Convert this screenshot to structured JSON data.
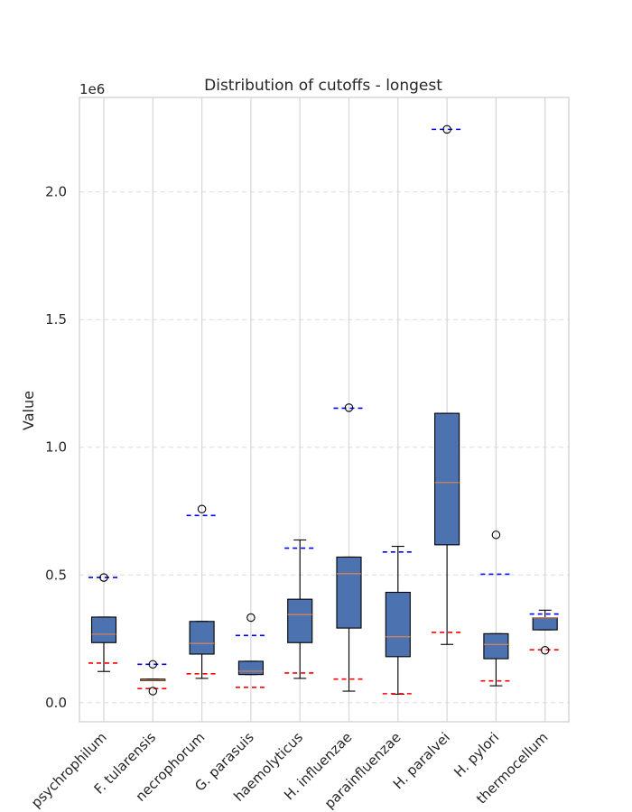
{
  "chart_data": {
    "type": "box",
    "title": "Distribution of cutoffs - longest",
    "xlabel": "",
    "ylabel": "Value",
    "y_offset_label": "1e6",
    "y_scale_factor": 1000000,
    "ylim": [
      -75000,
      2370000
    ],
    "yticks": [
      0,
      500000,
      1000000,
      1500000,
      2000000
    ],
    "ytick_labels": [
      "0.0",
      "0.5",
      "1.0",
      "1.5",
      "2.0"
    ],
    "grid": true,
    "colors": {
      "box": "#4c72b0",
      "median": "#dd8452",
      "min_line": "#ff0000",
      "max_line": "#0000ff"
    },
    "categories": [
      "psychrophilum",
      "F. tularensis",
      "necrophorum",
      "G. parasuis",
      "haemolyticus",
      "H. influenzae",
      "parainfluenzae",
      "H. paralvei",
      "H. pylori",
      "thermocellum"
    ],
    "boxes": [
      {
        "q1": 235000,
        "median": 268000,
        "q3": 335000,
        "whisker_low": 122000,
        "whisker_high": 335000,
        "fliers": [
          490000
        ],
        "min": 155000,
        "max": 490000
      },
      {
        "q1": 86000,
        "median": 88000,
        "q3": 92000,
        "whisker_low": 86000,
        "whisker_high": 92000,
        "fliers": [
          150000,
          45000
        ],
        "min": 55000,
        "max": 150000
      },
      {
        "q1": 190000,
        "median": 232000,
        "q3": 318000,
        "whisker_low": 95000,
        "whisker_high": 318000,
        "fliers": [
          758000
        ],
        "min": 113000,
        "max": 733000
      },
      {
        "q1": 110000,
        "median": 123000,
        "q3": 162000,
        "whisker_low": 110000,
        "whisker_high": 162000,
        "fliers": [
          333000
        ],
        "min": 60000,
        "max": 263000
      },
      {
        "q1": 235000,
        "median": 345000,
        "q3": 405000,
        "whisker_low": 95000,
        "whisker_high": 637000,
        "fliers": [],
        "min": 116000,
        "max": 605000
      },
      {
        "q1": 292000,
        "median": 505000,
        "q3": 570000,
        "whisker_low": 45000,
        "whisker_high": 570000,
        "fliers": [
          1155000
        ],
        "min": 92000,
        "max": 1153000
      },
      {
        "q1": 180000,
        "median": 258000,
        "q3": 432000,
        "whisker_low": 33000,
        "whisker_high": 612000,
        "fliers": [],
        "min": 35000,
        "max": 590000
      },
      {
        "q1": 618000,
        "median": 862000,
        "q3": 1133000,
        "whisker_low": 228000,
        "whisker_high": 1133000,
        "fliers": [
          2245000
        ],
        "min": 275000,
        "max": 2245000
      },
      {
        "q1": 172000,
        "median": 228000,
        "q3": 270000,
        "whisker_low": 66000,
        "whisker_high": 270000,
        "fliers": [
          657000
        ],
        "min": 85000,
        "max": 503000
      },
      {
        "q1": 285000,
        "median": 332000,
        "q3": 332000,
        "whisker_low": 285000,
        "whisker_high": 362000,
        "fliers": [
          205000
        ],
        "min": 207000,
        "max": 347000
      }
    ]
  }
}
